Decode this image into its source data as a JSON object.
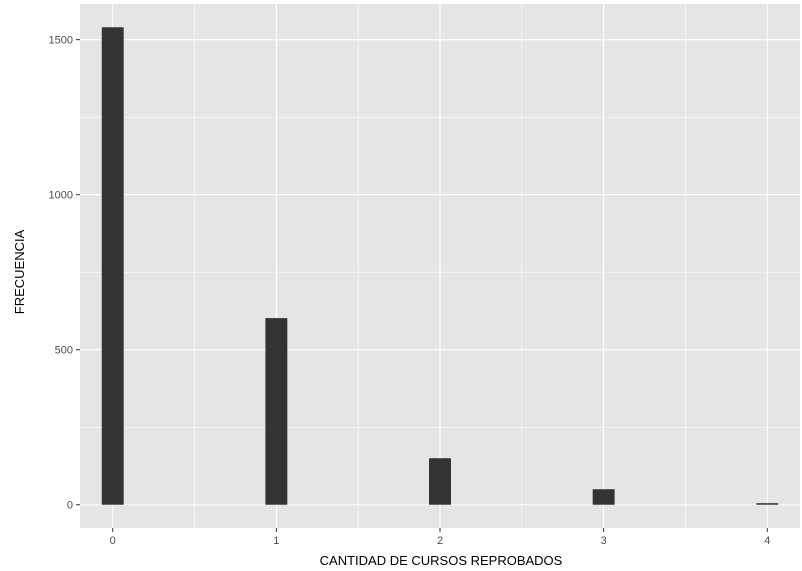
{
  "chart_data": {
    "type": "bar",
    "title": "",
    "xlabel": "CANTIDAD DE CURSOS REPROBADOS",
    "ylabel": "FRECUENCIA",
    "x": [
      0,
      1,
      2,
      3,
      4
    ],
    "values": [
      1540,
      602,
      150,
      50,
      5
    ],
    "x_ticks": [
      "0",
      "1",
      "2",
      "3",
      "4"
    ],
    "y_ticks": [
      "0",
      "500",
      "1000",
      "1500"
    ],
    "ylim": [
      -75,
      1615
    ],
    "xlim": [
      -0.2,
      4.2
    ],
    "grid": true,
    "legend": "none",
    "colors": {
      "panel_background": "#e5e5e5",
      "grid_line": "#ffffff",
      "bar_fill": "#333333"
    }
  }
}
